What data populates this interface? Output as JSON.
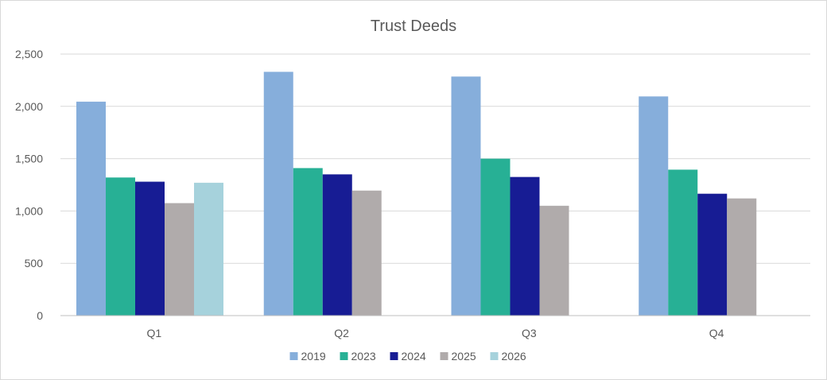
{
  "chart_data": {
    "type": "bar",
    "title": "Trust Deeds",
    "xlabel": "",
    "ylabel": "",
    "categories": [
      "Q1",
      "Q2",
      "Q3",
      "Q4"
    ],
    "ylim": [
      0,
      2500
    ],
    "yticks": [
      0,
      500,
      1000,
      1500,
      2000,
      2500
    ],
    "ytick_labels": [
      "0",
      "500",
      "1,000",
      "1,500",
      "2,000",
      "2,500"
    ],
    "grid": true,
    "legend_position": "bottom",
    "series": [
      {
        "name": "2019",
        "color": "#86aedb",
        "values": [
          2045,
          2330,
          2285,
          2095
        ]
      },
      {
        "name": "2023",
        "color": "#27b095",
        "values": [
          1320,
          1410,
          1500,
          1395
        ]
      },
      {
        "name": "2024",
        "color": "#171c94",
        "values": [
          1280,
          1350,
          1325,
          1165
        ]
      },
      {
        "name": "2025",
        "color": "#b0abab",
        "values": [
          1075,
          1195,
          1050,
          1120
        ]
      },
      {
        "name": "2026",
        "color": "#a6d2dc",
        "values": [
          1270,
          null,
          null,
          null
        ]
      }
    ]
  }
}
